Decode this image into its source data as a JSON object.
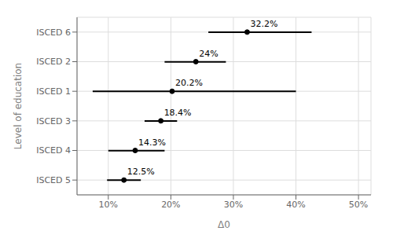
{
  "chart_data": {
    "type": "dot",
    "orientation": "horizontal",
    "categories": [
      "ISCED 6",
      "ISCED 2",
      "ISCED 1",
      "ISCED 3",
      "ISCED 4",
      "ISCED 5"
    ],
    "values": [
      0.322,
      0.24,
      0.202,
      0.184,
      0.143,
      0.125
    ],
    "ci_low": [
      0.26,
      0.19,
      0.075,
      0.158,
      0.1,
      0.098
    ],
    "ci_high": [
      0.425,
      0.288,
      0.4,
      0.21,
      0.19,
      0.152
    ],
    "value_labels": [
      "32.2%",
      "24%",
      "20.2%",
      "18.4%",
      "14.3%",
      "12.5%"
    ],
    "data_labels": true,
    "xlabel": "Δ0",
    "ylabel": "Level of education",
    "xlim": [
      0.05,
      0.52
    ],
    "xticks": [
      {
        "value": 0.1,
        "label": "10%"
      },
      {
        "value": 0.2,
        "label": "20%"
      },
      {
        "value": 0.3,
        "label": "30%"
      },
      {
        "value": 0.4,
        "label": "40%"
      },
      {
        "value": 0.5,
        "label": "50%"
      }
    ],
    "grid": true,
    "color": "#000000"
  }
}
